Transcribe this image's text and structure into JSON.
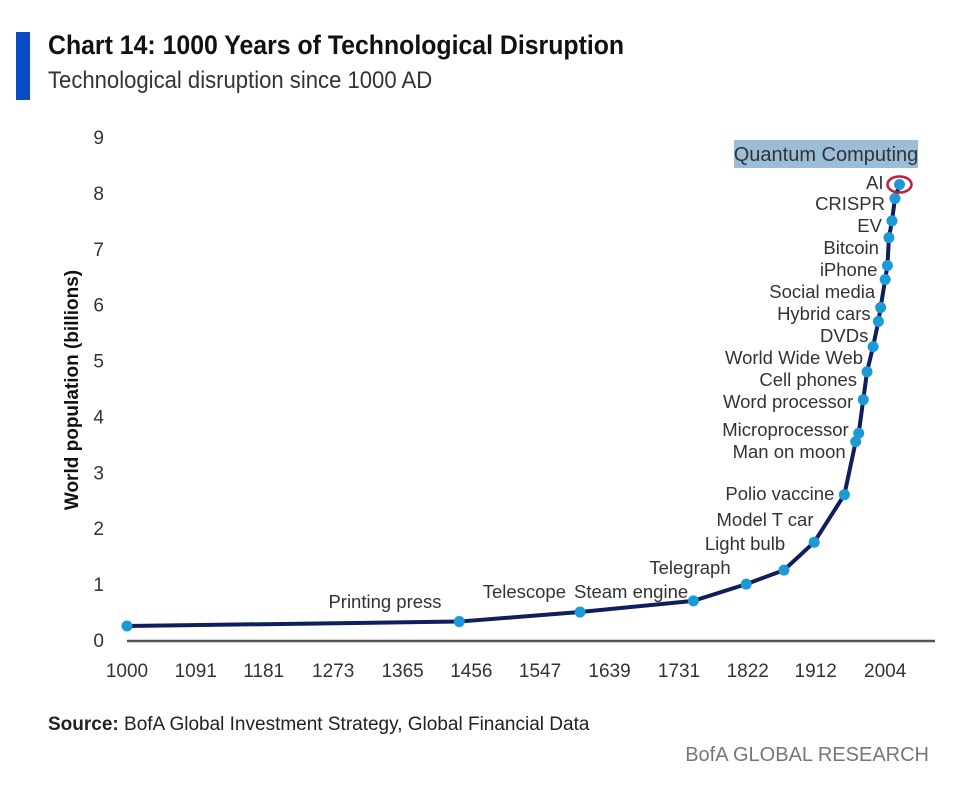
{
  "title": "Chart 14: 1000 Years of Technological Disruption",
  "subtitle": "Technological disruption since 1000 AD",
  "source_label": "Source:",
  "source_text": "BofA Global Investment Strategy, Global Financial Data",
  "brand": "BofA GLOBAL RESEARCH",
  "colors": {
    "accent_bar": "#0b4cc4",
    "line": "#0f1f5c",
    "marker": "#1b9ad6",
    "highlight": "#9bbdd8",
    "ai_ring": "#c0203a"
  },
  "chart_data": {
    "type": "line",
    "title": "Chart 14: 1000 Years of Technological Disruption",
    "ylabel": "World population (billions)",
    "xlabel": "",
    "ylim": [
      0,
      9
    ],
    "xlim": [
      1000,
      2070
    ],
    "grid": false,
    "x_ticks": [
      "1000",
      "1091",
      "1181",
      "1273",
      "1365",
      "1456",
      "1547",
      "1639",
      "1731",
      "1822",
      "1912",
      "2004"
    ],
    "y_ticks": [
      "0",
      "1",
      "2",
      "3",
      "4",
      "5",
      "6",
      "7",
      "8",
      "9"
    ],
    "points": [
      {
        "x": 1000,
        "y": 0.25,
        "label": ""
      },
      {
        "x": 1440,
        "y": 0.33,
        "label": "Printing press"
      },
      {
        "x": 1600,
        "y": 0.5,
        "label": "Telescope"
      },
      {
        "x": 1750,
        "y": 0.7,
        "label": "Steam engine"
      },
      {
        "x": 1820,
        "y": 1.0,
        "label": "Telegraph"
      },
      {
        "x": 1870,
        "y": 1.25,
        "label": "Light bulb"
      },
      {
        "x": 1910,
        "y": 1.75,
        "label": "Model T car"
      },
      {
        "x": 1950,
        "y": 2.6,
        "label": "Polio vaccine"
      },
      {
        "x": 1965,
        "y": 3.55,
        "label": "Man on moon"
      },
      {
        "x": 1969,
        "y": 3.7,
        "label": "Microprocessor"
      },
      {
        "x": 1975,
        "y": 4.3,
        "label": "Word processor"
      },
      {
        "x": 1980,
        "y": 4.8,
        "label": "Cell phones"
      },
      {
        "x": 1988,
        "y": 5.25,
        "label": "World Wide Web"
      },
      {
        "x": 1995,
        "y": 5.7,
        "label": "DVDs"
      },
      {
        "x": 1998,
        "y": 5.95,
        "label": "Hybrid cars"
      },
      {
        "x": 2004,
        "y": 6.45,
        "label": "Social media"
      },
      {
        "x": 2007,
        "y": 6.7,
        "label": "iPhone"
      },
      {
        "x": 2009,
        "y": 7.2,
        "label": "Bitcoin"
      },
      {
        "x": 2013,
        "y": 7.5,
        "label": "EV"
      },
      {
        "x": 2017,
        "y": 7.9,
        "label": "CRISPR"
      },
      {
        "x": 2023,
        "y": 8.15,
        "label": "AI"
      }
    ],
    "annotation": "Quantum Computing"
  }
}
